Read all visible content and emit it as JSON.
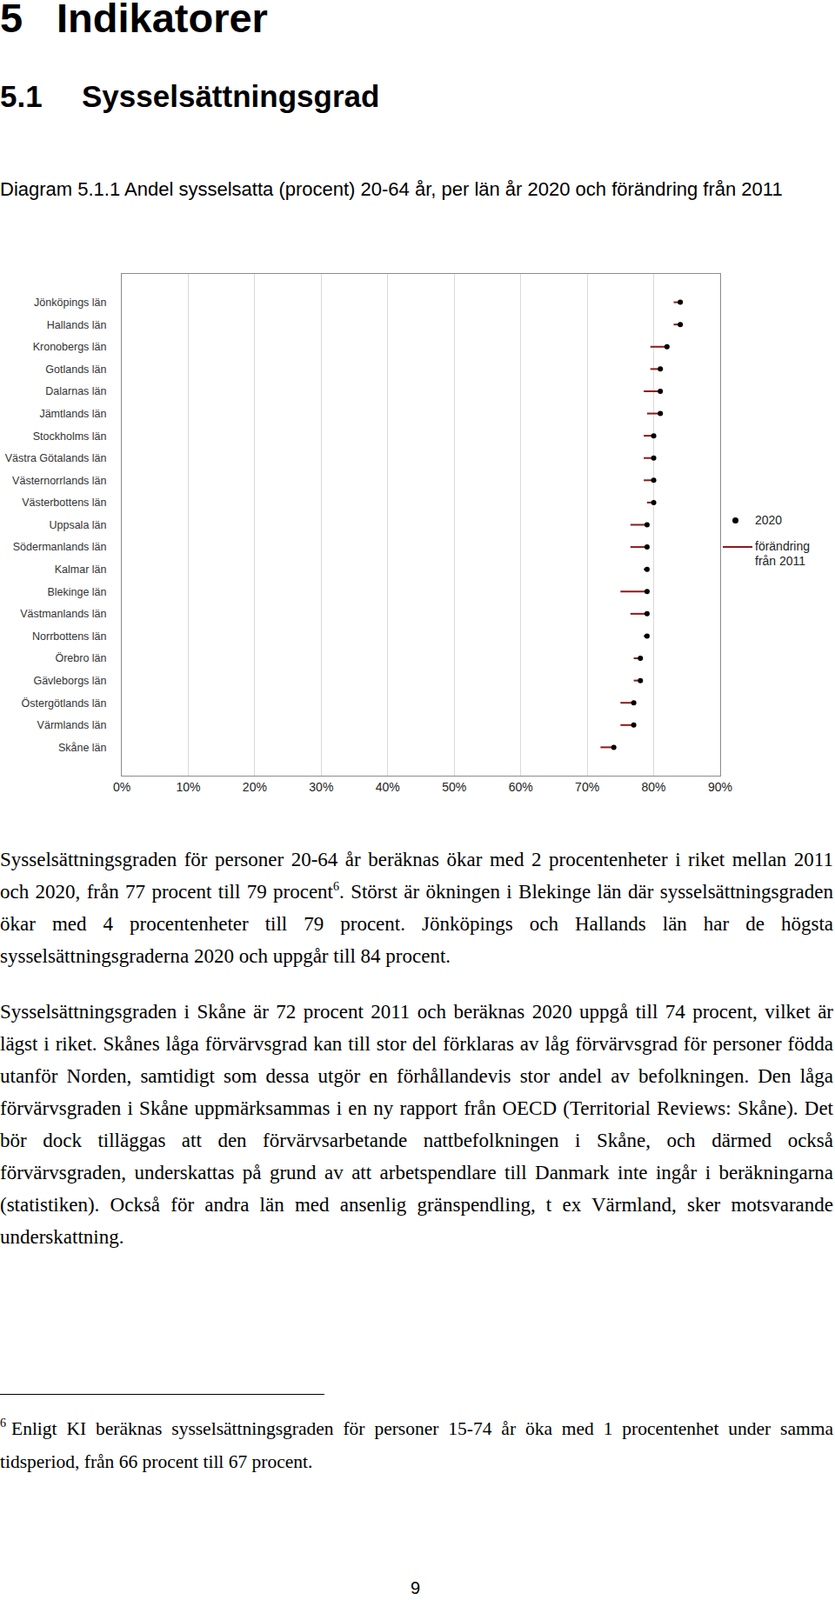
{
  "headings": {
    "chapter": {
      "number": "5",
      "title": "Indikatorer"
    },
    "section": {
      "number": "5.1",
      "title": "Sysselsättningsgrad"
    }
  },
  "caption": "Diagram 5.1.1 Andel sysselsatta (procent) 20-64 år, per län år 2020 och förändring från 2011",
  "chart_data": {
    "type": "dot",
    "orientation": "horizontal",
    "categories": [
      "Jönköpings län",
      "Hallands län",
      "Kronobergs län",
      "Gotlands län",
      "Dalarnas län",
      "Jämtlands län",
      "Stockholms län",
      "Västra Götalands län",
      "Västernorrlands län",
      "Västerbottens län",
      "Uppsala län",
      "Södermanlands län",
      "Kalmar län",
      "Blekinge län",
      "Västmanlands län",
      "Norrbottens län",
      "Örebro län",
      "Gävleborgs län",
      "Östergötlands län",
      "Värmlands län",
      "Skåne län"
    ],
    "series": [
      {
        "name": "2020",
        "type": "scatter",
        "marker": "circle",
        "color": "#000000",
        "values": [
          84,
          84,
          82,
          81,
          81,
          81,
          80,
          80,
          80,
          80,
          79,
          79,
          79,
          79,
          79,
          79,
          78,
          78,
          77,
          77,
          74
        ]
      },
      {
        "name": "förändring från 2011",
        "type": "line",
        "line_style": "solid",
        "color": "#8b1a1a",
        "values": [
          83,
          83,
          79.5,
          79.5,
          78.5,
          79,
          78.5,
          78.5,
          78.5,
          79,
          76.5,
          76.5,
          78.5,
          75,
          76.5,
          78.5,
          77,
          77,
          75,
          75,
          72
        ]
      }
    ],
    "xlim": [
      0,
      90
    ],
    "xticks": [
      {
        "value": 0,
        "label": "0%"
      },
      {
        "value": 10,
        "label": "10%"
      },
      {
        "value": 20,
        "label": "20%"
      },
      {
        "value": 30,
        "label": "30%"
      },
      {
        "value": 40,
        "label": "40%"
      },
      {
        "value": 50,
        "label": "50%"
      },
      {
        "value": 60,
        "label": "60%"
      },
      {
        "value": 70,
        "label": "70%"
      },
      {
        "value": 80,
        "label": "80%"
      },
      {
        "value": 90,
        "label": "90%"
      }
    ],
    "grid": true
  },
  "paragraphs": [
    [
      {
        "text": "Sysselsättningsgraden för personer 20-64 år beräknas ökar med 2 procentenheter i riket mellan 2011 och 2020, från 77 procent till 79 procent"
      },
      {
        "footnote_ref": "6"
      },
      {
        "text": ". Störst är ökningen i Blekinge län där sysselsättningsgraden ökar med 4 procentenheter till 79 procent. Jönköpings och Hallands län har de högsta sysselsättningsgraderna 2020 och uppgår till 84 procent."
      }
    ],
    [
      {
        "text": "Sysselsättningsgraden i Skåne är 72 procent 2011 och beräknas 2020 uppgå till 74 procent, vilket är lägst i riket. Skånes låga förvärvsgrad kan till stor del förklaras av låg förvärvsgrad för personer födda utanför Norden, samtidigt som dessa utgör en förhållandevis stor andel av befolkningen. Den låga förvärvsgraden i Skåne uppmärksammas i en ny rapport från OECD (Territorial Reviews: Skåne). Det bör dock tilläggas att den förvärvsarbetande nattbefolkningen i Skåne, och därmed också förvärvsgraden, underskattas på grund av att arbetspendlare till Danmark inte ingår i beräkningarna (statistiken). Också för andra län med ansenlig gränspendling, t ex Värmland, sker motsvarande underskattning."
      }
    ]
  ],
  "footnotes": [
    {
      "marker": "6",
      "text": "Enligt KI beräknas sysselsättningsgraden för personer 15-74 år öka med 1 procentenhet under samma tidsperiod, från 66 procent till 67 procent."
    }
  ],
  "page_number": 9
}
